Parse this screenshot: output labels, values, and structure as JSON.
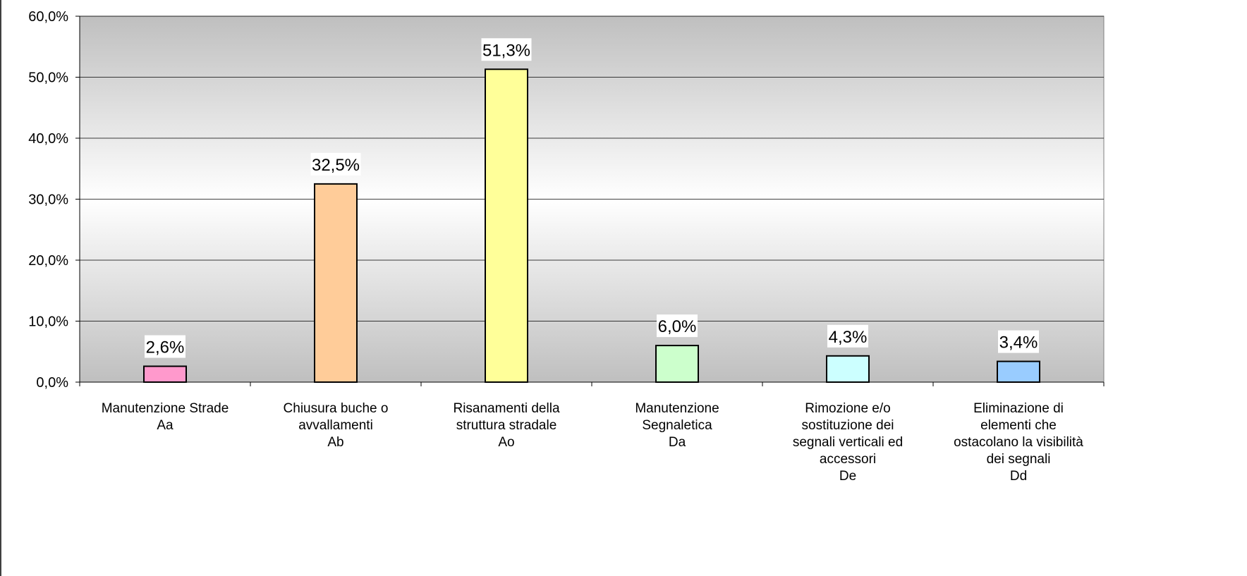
{
  "chart_data": {
    "type": "bar",
    "categories": [
      "Manutenzione Strade\nAa",
      "Chiusura buche o\navvallamenti\nAb",
      "Risanamenti della\nstruttura stradale\nAo",
      "Manutenzione\nSegnaletica\nDa",
      "Rimozione e/o\nsostituzione dei\nsegnali verticali ed\naccessori\nDe",
      "Eliminazione di\nelementi che\nostacolano la visibilità\ndei segnali\nDd"
    ],
    "values": [
      2.6,
      32.5,
      51.3,
      6.0,
      4.3,
      3.4
    ],
    "value_labels": [
      "2,6%",
      "32,5%",
      "51,3%",
      "6,0%",
      "4,3%",
      "3,4%"
    ],
    "colors": [
      "#ff99cc",
      "#ffcc99",
      "#ffff99",
      "#ccffcc",
      "#ccffff",
      "#99ccff"
    ],
    "ylim": [
      0,
      60
    ],
    "yticks": [
      {
        "value": 0,
        "label": "0,0%"
      },
      {
        "value": 10,
        "label": "10,0%"
      },
      {
        "value": 20,
        "label": "20,0%"
      },
      {
        "value": 30,
        "label": "30,0%"
      },
      {
        "value": 40,
        "label": "40,0%"
      },
      {
        "value": 50,
        "label": "50,0%"
      },
      {
        "value": 60,
        "label": "60,0%"
      }
    ],
    "grid": true
  }
}
